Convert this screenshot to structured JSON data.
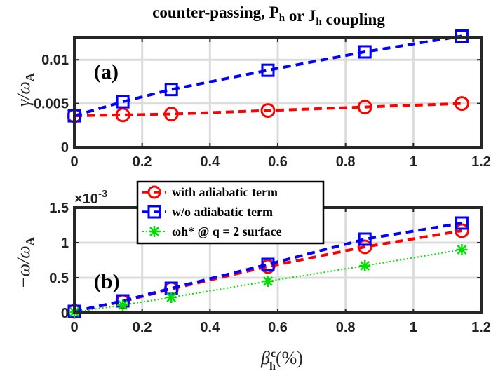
{
  "chart_data": [
    {
      "type": "line",
      "title": "counter-passing, Ph or Jh coupling",
      "panel_label": "(a)",
      "ylabel": "γ/ωA",
      "xlim": [
        0,
        1.2
      ],
      "ylim": [
        0,
        0.0125
      ],
      "xticks": [
        "0",
        "0.2",
        "0.4",
        "0.6",
        "0.8",
        "1",
        "1.2"
      ],
      "yticks": [
        {
          "value": 0,
          "label": "0"
        },
        {
          "value": 0.005,
          "label": "0.005"
        },
        {
          "value": 0.01,
          "label": "0.01"
        }
      ],
      "grid": true,
      "series": [
        {
          "color": "#ff0000",
          "marker": "circle",
          "line": "dashed",
          "x": [
            0,
            0.143,
            0.286,
            0.571,
            0.857,
            1.143
          ],
          "y": [
            0.0036,
            0.0037,
            0.0038,
            0.0042,
            0.0046,
            0.005
          ]
        },
        {
          "color": "#0000ff",
          "marker": "square",
          "line": "dashed",
          "x": [
            0,
            0.143,
            0.286,
            0.571,
            0.857,
            1.143
          ],
          "y": [
            0.0036,
            0.0052,
            0.0066,
            0.0088,
            0.0109,
            0.0127
          ]
        }
      ]
    },
    {
      "type": "line",
      "panel_label": "(b)",
      "ylabel": "−ω/ωA",
      "xlabel": "βhc(%)",
      "exponent_label": "×10",
      "exponent_power": "-3",
      "xlim": [
        0,
        1.2
      ],
      "ylim": [
        0,
        1.5
      ],
      "xticks": [
        "0",
        "0.2",
        "0.4",
        "0.6",
        "0.8",
        "1",
        "1.2"
      ],
      "yticks": [
        {
          "value": 0,
          "label": "0"
        },
        {
          "value": 0.5,
          "label": "0.5"
        },
        {
          "value": 1,
          "label": "1"
        },
        {
          "value": 1.5,
          "label": "1.5"
        }
      ],
      "grid": true,
      "legend_position": "top-left",
      "series": [
        {
          "name": "with adiabatic term",
          "color": "#ff0000",
          "marker": "circle",
          "line": "dashed",
          "x": [
            0,
            0.143,
            0.286,
            0.571,
            0.857,
            1.143
          ],
          "y": [
            0.02,
            0.16,
            0.34,
            0.66,
            0.94,
            1.17
          ]
        },
        {
          "name": "w/o adiabatic term",
          "color": "#0000ff",
          "marker": "square",
          "line": "dashed",
          "x": [
            0,
            0.143,
            0.286,
            0.571,
            0.857,
            1.143
          ],
          "y": [
            0.02,
            0.17,
            0.35,
            0.69,
            1.05,
            1.28
          ]
        },
        {
          "name": "ωh* @ q = 2 surface",
          "color": "#00dd00",
          "marker": "star",
          "line": "dotted",
          "x": [
            0,
            0.143,
            0.286,
            0.571,
            0.857,
            1.143
          ],
          "y": [
            0.01,
            0.11,
            0.22,
            0.45,
            0.67,
            0.9
          ]
        }
      ]
    }
  ]
}
